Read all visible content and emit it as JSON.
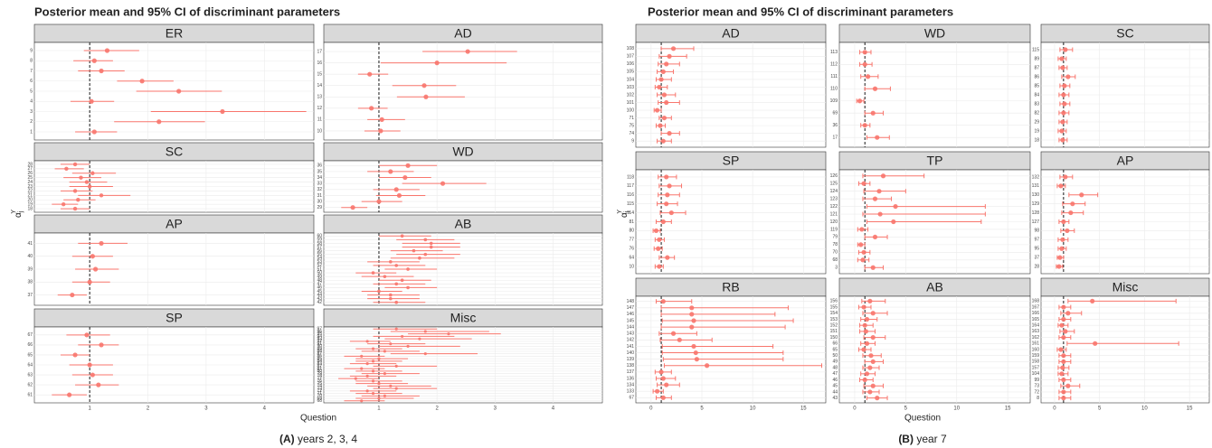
{
  "chart_data": [
    {
      "type": "forest",
      "title": "Posterior mean and 95% CI of discriminant parameters",
      "xlabel": "Question",
      "ylabel": "α",
      "ylabel_subscript": "j",
      "ylabel_superscript": "Y",
      "caption_tag": "(A)",
      "caption": "years 2, 3, 4",
      "xlim": [
        0.05,
        4.85
      ],
      "xticks": [
        1,
        2,
        3,
        4
      ],
      "reference": 1,
      "color": "#f8766d",
      "caps": false,
      "panels": [
        {
          "name": "ER",
          "categories": [
            "9",
            "8",
            "7",
            "6",
            "5",
            "4",
            "3",
            "2",
            "1"
          ],
          "values": [
            1.3,
            1.08,
            1.2,
            1.9,
            2.53,
            1.03,
            3.28,
            2.19,
            1.08
          ],
          "lower": [
            0.9,
            0.72,
            0.8,
            1.47,
            1.8,
            0.67,
            2.05,
            1.42,
            0.75
          ],
          "upper": [
            1.85,
            1.4,
            1.6,
            2.44,
            3.27,
            1.42,
            4.72,
            2.98,
            1.47
          ]
        },
        {
          "name": "AD",
          "categories": [
            "17",
            "16",
            "15",
            "14",
            "13",
            "12",
            "11",
            "10"
          ],
          "values": [
            2.53,
            2.0,
            0.84,
            1.78,
            1.81,
            0.87,
            1.05,
            1.03
          ],
          "lower": [
            1.75,
            1.03,
            0.64,
            1.23,
            1.31,
            0.64,
            0.8,
            0.75
          ],
          "upper": [
            3.38,
            3.2,
            1.16,
            2.33,
            2.48,
            1.15,
            1.45,
            1.37
          ]
        },
        {
          "name": "SC",
          "categories": [
            "28",
            "27",
            "26",
            "25",
            "24",
            "23",
            "22",
            "21",
            "20",
            "19",
            "18"
          ],
          "values": [
            0.75,
            0.6,
            1.05,
            0.85,
            0.95,
            1.0,
            0.75,
            1.2,
            0.8,
            0.55,
            0.75
          ],
          "lower": [
            0.5,
            0.4,
            0.7,
            0.55,
            0.65,
            0.65,
            0.5,
            0.8,
            0.55,
            0.35,
            0.5
          ],
          "upper": [
            1.0,
            0.9,
            1.45,
            1.2,
            1.3,
            1.4,
            1.05,
            1.7,
            1.1,
            0.8,
            1.0
          ]
        },
        {
          "name": "WD",
          "categories": [
            "36",
            "35",
            "34",
            "33",
            "32",
            "31",
            "30",
            "29"
          ],
          "values": [
            1.5,
            1.2,
            1.45,
            2.1,
            1.3,
            1.35,
            1.0,
            0.55
          ],
          "lower": [
            1.0,
            0.8,
            1.0,
            1.4,
            0.9,
            0.95,
            0.7,
            0.35
          ],
          "upper": [
            2.0,
            1.6,
            1.9,
            2.85,
            1.7,
            1.8,
            1.4,
            0.8
          ]
        },
        {
          "name": "AP",
          "categories": [
            "41",
            "40",
            "39",
            "38",
            "37"
          ],
          "values": [
            1.2,
            1.05,
            1.1,
            1.0,
            0.7
          ],
          "lower": [
            0.8,
            0.7,
            0.75,
            0.7,
            0.45
          ],
          "upper": [
            1.65,
            1.4,
            1.5,
            1.35,
            0.95
          ]
        },
        {
          "name": "AB",
          "categories": [
            "60",
            "59",
            "58",
            "57",
            "56",
            "55",
            "54",
            "53",
            "52",
            "51",
            "50",
            "49",
            "48",
            "47",
            "46",
            "45",
            "44",
            "43",
            "42"
          ],
          "values": [
            1.4,
            1.8,
            1.9,
            1.9,
            1.6,
            1.8,
            1.7,
            1.2,
            1.3,
            1.5,
            0.9,
            1.1,
            1.4,
            1.3,
            1.5,
            1.0,
            1.2,
            1.2,
            1.3
          ],
          "lower": [
            1.0,
            1.3,
            1.4,
            1.4,
            1.2,
            1.3,
            1.2,
            0.8,
            0.9,
            1.1,
            0.6,
            0.7,
            1.0,
            0.9,
            1.1,
            0.7,
            0.8,
            0.8,
            0.9
          ],
          "upper": [
            1.9,
            2.3,
            2.4,
            2.4,
            2.1,
            2.4,
            2.3,
            1.7,
            1.8,
            2.0,
            1.3,
            1.6,
            1.9,
            1.8,
            2.0,
            1.4,
            1.7,
            1.7,
            1.8
          ]
        },
        {
          "name": "SP",
          "categories": [
            "67",
            "66",
            "65",
            "64",
            "63",
            "62",
            "61"
          ],
          "values": [
            0.95,
            1.2,
            0.75,
            1.0,
            1.05,
            1.15,
            0.65
          ],
          "lower": [
            0.6,
            0.8,
            0.5,
            0.65,
            0.7,
            0.75,
            0.35
          ],
          "upper": [
            1.35,
            1.5,
            1.0,
            1.4,
            1.4,
            1.5,
            0.95
          ]
        },
        {
          "name": "Misc",
          "categories": [
            "97",
            "96",
            "95",
            "94",
            "93",
            "92",
            "91",
            "90",
            "89",
            "88",
            "87",
            "86",
            "85",
            "84",
            "83",
            "82",
            "81",
            "80",
            "79",
            "78",
            "77",
            "76",
            "75",
            "74",
            "73",
            "72",
            "71",
            "70",
            "69",
            "68"
          ],
          "values": [
            1.3,
            1.8,
            2.2,
            1.4,
            1.7,
            0.8,
            1.2,
            1.5,
            0.9,
            1.1,
            1.8,
            0.7,
            1.0,
            0.9,
            0.8,
            1.3,
            0.7,
            0.9,
            1.1,
            0.8,
            0.6,
            0.9,
            1.0,
            1.2,
            1.3,
            0.8,
            0.9,
            1.1,
            1.0,
            0.7
          ],
          "lower": [
            0.9,
            1.2,
            1.5,
            0.9,
            1.1,
            0.5,
            0.8,
            1.0,
            0.6,
            0.7,
            1.2,
            0.4,
            0.6,
            0.6,
            0.5,
            0.9,
            0.4,
            0.6,
            0.7,
            0.5,
            0.3,
            0.6,
            0.6,
            0.8,
            0.9,
            0.5,
            0.6,
            0.7,
            0.6,
            0.4
          ],
          "upper": [
            2.0,
            2.9,
            3.1,
            2.3,
            2.6,
            1.2,
            1.8,
            2.4,
            1.4,
            1.7,
            2.7,
            1.1,
            1.5,
            1.4,
            1.3,
            2.0,
            1.1,
            1.4,
            1.7,
            1.3,
            1.0,
            1.4,
            1.5,
            1.9,
            2.0,
            1.3,
            1.4,
            1.7,
            1.6,
            1.1
          ]
        }
      ]
    },
    {
      "type": "forest",
      "title": "Posterior mean and 95% CI of discriminant parameters",
      "xlabel": "Question",
      "ylabel": "α",
      "ylabel_subscript": "j",
      "ylabel_superscript": "Y",
      "caption_tag": "(B)",
      "caption": "year 7",
      "xlim": [
        -1.5,
        17.2
      ],
      "xticks": [
        0,
        5,
        10,
        15
      ],
      "reference": 1,
      "color": "#f8766d",
      "caps": true,
      "panels": [
        {
          "name": "AD",
          "categories": [
            "108",
            "107",
            "106",
            "105",
            "104",
            "103",
            "102",
            "101",
            "100",
            "71",
            "75",
            "74",
            "9"
          ],
          "values": [
            2.2,
            1.8,
            1.5,
            1.2,
            1.0,
            0.8,
            1.3,
            1.5,
            0.6,
            1.3,
            0.9,
            1.8,
            1.2
          ],
          "lower": [
            1.0,
            0.8,
            0.7,
            0.6,
            0.5,
            0.4,
            0.6,
            0.7,
            0.3,
            0.8,
            0.5,
            1.0,
            0.6
          ],
          "upper": [
            4.2,
            3.5,
            2.8,
            2.2,
            2.0,
            1.6,
            2.4,
            2.8,
            1.0,
            2.0,
            1.4,
            2.8,
            2.0
          ]
        },
        {
          "name": "WD",
          "categories": [
            "113",
            "112",
            "111",
            "110",
            "109",
            "69",
            "36",
            "17"
          ],
          "values": [
            1.0,
            1.0,
            1.3,
            2.0,
            0.5,
            1.8,
            1.0,
            2.2
          ],
          "lower": [
            0.5,
            0.5,
            0.6,
            1.0,
            0.2,
            1.0,
            0.6,
            1.2
          ],
          "upper": [
            1.6,
            1.7,
            2.3,
            3.5,
            0.9,
            2.8,
            1.5,
            3.4
          ]
        },
        {
          "name": "SC",
          "categories": [
            "115",
            "89",
            "87",
            "86",
            "85",
            "84",
            "83",
            "82",
            "29",
            "19",
            "18"
          ],
          "values": [
            1.2,
            0.8,
            0.9,
            1.5,
            1.1,
            1.0,
            1.1,
            1.0,
            0.9,
            0.8,
            0.9
          ],
          "lower": [
            0.6,
            0.4,
            0.5,
            0.8,
            0.6,
            0.5,
            0.6,
            0.5,
            0.5,
            0.4,
            0.5
          ],
          "upper": [
            2.0,
            1.3,
            1.4,
            2.3,
            1.7,
            1.6,
            1.7,
            1.6,
            1.4,
            1.3,
            1.4
          ]
        },
        {
          "name": "SP",
          "categories": [
            "118",
            "117",
            "116",
            "115",
            "114",
            "81",
            "80",
            "77",
            "76",
            "64",
            "10"
          ],
          "values": [
            1.5,
            1.8,
            1.6,
            1.5,
            2.0,
            1.2,
            0.5,
            0.8,
            0.7,
            1.6,
            0.8
          ],
          "lower": [
            0.7,
            0.8,
            0.7,
            0.6,
            0.9,
            0.5,
            0.2,
            0.4,
            0.3,
            0.8,
            0.4
          ],
          "upper": [
            2.5,
            3.0,
            2.8,
            2.6,
            3.4,
            2.0,
            0.9,
            1.3,
            1.1,
            2.3,
            1.2
          ]
        },
        {
          "name": "TP",
          "categories": [
            "126",
            "125",
            "124",
            "123",
            "122",
            "121",
            "120",
            "119",
            "79",
            "78",
            "70",
            "68",
            "3"
          ],
          "values": [
            2.8,
            0.9,
            2.4,
            2.0,
            4.0,
            2.5,
            3.8,
            0.7,
            2.0,
            0.6,
            0.9,
            0.8,
            1.8
          ],
          "lower": [
            0.8,
            0.4,
            0.9,
            0.8,
            1.2,
            0.8,
            1.2,
            0.3,
            1.0,
            0.3,
            0.4,
            0.3,
            1.0
          ],
          "upper": [
            6.8,
            1.5,
            5.0,
            3.6,
            12.8,
            12.8,
            12.4,
            1.3,
            3.2,
            1.0,
            1.5,
            1.4,
            2.8
          ]
        },
        {
          "name": "AP",
          "categories": [
            "132",
            "131",
            "130",
            "129",
            "128",
            "127",
            "98",
            "97",
            "95",
            "37",
            "28"
          ],
          "values": [
            1.2,
            0.7,
            3.0,
            2.0,
            1.8,
            1.0,
            1.4,
            0.9,
            0.8,
            0.6,
            0.5
          ],
          "lower": [
            0.6,
            0.3,
            1.6,
            0.9,
            0.8,
            0.5,
            0.7,
            0.4,
            0.4,
            0.3,
            0.2
          ],
          "upper": [
            2.0,
            1.2,
            4.8,
            3.4,
            3.2,
            1.6,
            2.2,
            1.5,
            1.3,
            1.0,
            0.9
          ]
        },
        {
          "name": "RB",
          "categories": [
            "148",
            "147",
            "146",
            "145",
            "144",
            "143",
            "142",
            "141",
            "140",
            "139",
            "138",
            "137",
            "136",
            "134",
            "133",
            "67"
          ],
          "values": [
            1.2,
            4.0,
            4.0,
            4.2,
            4.0,
            2.2,
            2.8,
            4.2,
            4.4,
            4.5,
            5.5,
            1.0,
            1.2,
            1.5,
            0.6,
            1.2
          ],
          "lower": [
            0.5,
            1.0,
            1.0,
            1.1,
            1.0,
            0.8,
            0.9,
            1.1,
            1.1,
            1.2,
            1.3,
            0.4,
            0.5,
            0.6,
            0.2,
            0.5
          ],
          "upper": [
            4.0,
            13.5,
            12.2,
            14.0,
            13.2,
            4.5,
            6.0,
            12.0,
            13.0,
            13.0,
            16.8,
            2.0,
            2.4,
            2.8,
            1.2,
            2.0
          ]
        },
        {
          "name": "AB",
          "categories": [
            "156",
            "155",
            "154",
            "153",
            "152",
            "151",
            "150",
            "66",
            "65",
            "50",
            "49",
            "48",
            "47",
            "46",
            "45",
            "44",
            "43"
          ],
          "values": [
            1.5,
            0.9,
            1.8,
            1.2,
            1.0,
            1.1,
            1.8,
            1.2,
            0.9,
            1.6,
            1.8,
            1.5,
            1.2,
            1.0,
            1.8,
            1.5,
            2.2
          ],
          "lower": [
            0.7,
            0.4,
            0.8,
            0.6,
            0.5,
            0.5,
            0.9,
            0.6,
            0.4,
            0.8,
            1.0,
            0.8,
            0.6,
            0.5,
            0.9,
            0.8,
            1.2
          ],
          "upper": [
            3.0,
            1.6,
            3.2,
            2.2,
            1.8,
            2.0,
            3.0,
            2.0,
            1.6,
            2.6,
            2.8,
            2.4,
            2.0,
            1.8,
            2.8,
            2.4,
            3.2
          ]
        },
        {
          "name": "Misc",
          "categories": [
            "168",
            "167",
            "166",
            "165",
            "164",
            "163",
            "162",
            "161",
            "160",
            "159",
            "158",
            "157",
            "104",
            "99",
            "73",
            "72",
            "8"
          ],
          "values": [
            4.2,
            1.0,
            1.5,
            1.0,
            0.8,
            1.2,
            1.0,
            4.5,
            0.7,
            1.0,
            1.0,
            0.9,
            0.8,
            1.0,
            1.5,
            1.0,
            1.0
          ],
          "lower": [
            1.5,
            0.5,
            0.7,
            0.5,
            0.4,
            0.6,
            0.5,
            1.4,
            0.3,
            0.5,
            0.5,
            0.4,
            0.4,
            0.5,
            0.7,
            0.5,
            0.5
          ],
          "upper": [
            13.5,
            1.8,
            3.0,
            1.8,
            1.5,
            2.2,
            1.8,
            13.8,
            1.3,
            1.8,
            1.8,
            1.6,
            1.5,
            1.8,
            2.8,
            1.8,
            1.8
          ]
        }
      ]
    }
  ]
}
